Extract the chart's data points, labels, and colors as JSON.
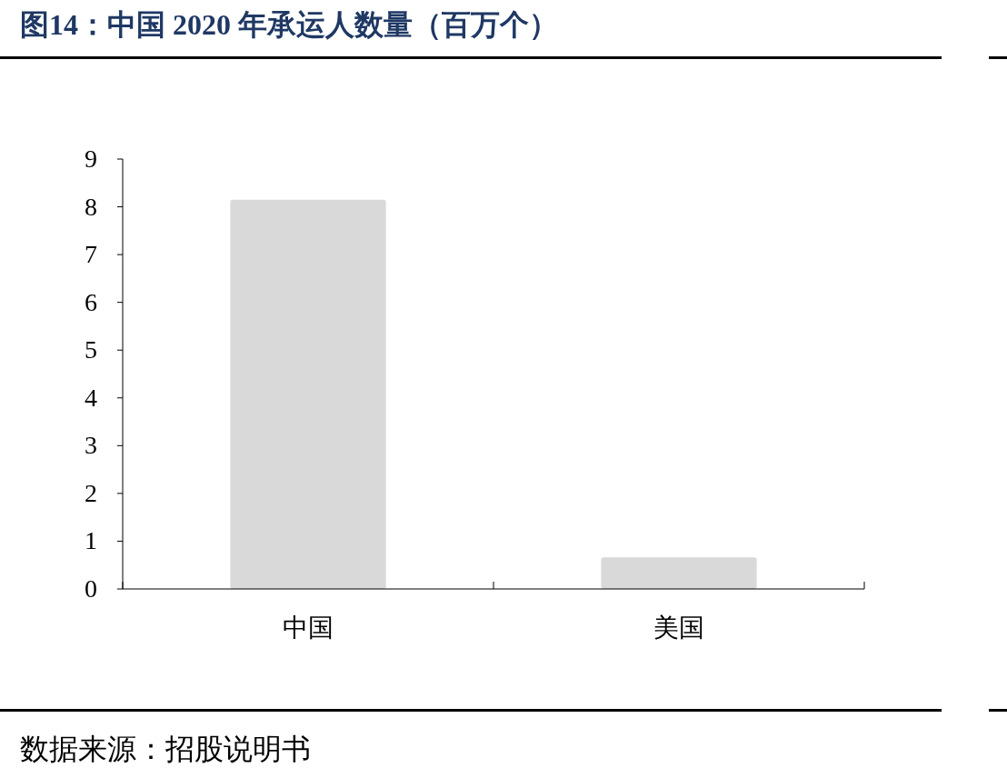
{
  "chart_data": {
    "type": "bar",
    "title": "图14：中国 2020 年承运人数量（百万个）",
    "categories": [
      "中国",
      "美国"
    ],
    "values": [
      8.15,
      0.66
    ],
    "color": "#d9d9d9",
    "ylim": [
      0,
      9
    ],
    "yticks": [
      0,
      1,
      2,
      3,
      4,
      5,
      6,
      7,
      8,
      9
    ],
    "annotations": [
      "数据来源：招股说明书"
    ]
  }
}
